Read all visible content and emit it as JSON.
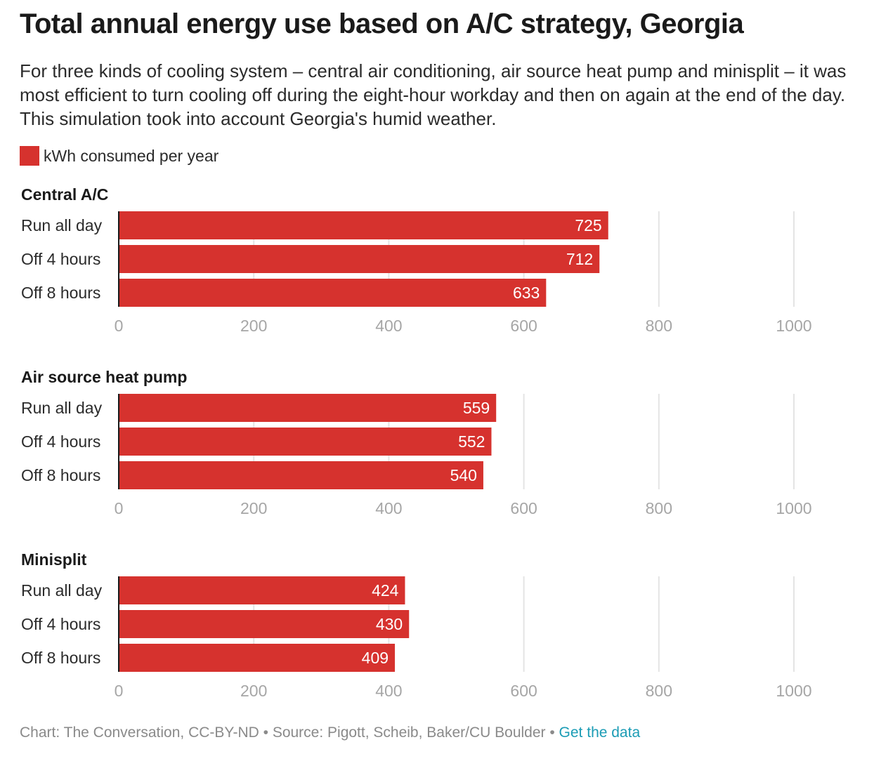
{
  "title": "Total annual energy use based on A/C strategy, Georgia",
  "subtitle": "For three kinds of cooling system – central air conditioning, air source heat pump and minisplit – it was most efficient to turn cooling off during the eight-hour workday and then on again at the end of the day. This simulation took into account Georgia's humid weather.",
  "legend": {
    "label": "kWh consumed per year",
    "color": "#d6322e"
  },
  "footer": {
    "credit": "Chart: The Conversation, CC-BY-ND • Source: Pigott, Scheib, Baker/CU Boulder • ",
    "link": "Get the data"
  },
  "colors": {
    "bar": "#d6322e",
    "grid": "#e4e4e4",
    "tick": "#a6a6a6"
  },
  "chart_data": [
    {
      "type": "bar",
      "orientation": "horizontal",
      "title": "Central A/C",
      "categories": [
        "Run all day",
        "Off 4 hours",
        "Off 8 hours"
      ],
      "values": [
        725,
        712,
        633
      ],
      "xlim": [
        0,
        1000
      ],
      "ticks": [
        0,
        200,
        400,
        600,
        800,
        1000
      ],
      "grid": true
    },
    {
      "type": "bar",
      "orientation": "horizontal",
      "title": "Air source heat pump",
      "categories": [
        "Run all day",
        "Off 4 hours",
        "Off 8 hours"
      ],
      "values": [
        559,
        552,
        540
      ],
      "xlim": [
        0,
        1000
      ],
      "ticks": [
        0,
        200,
        400,
        600,
        800,
        1000
      ],
      "grid": true
    },
    {
      "type": "bar",
      "orientation": "horizontal",
      "title": "Minisplit",
      "categories": [
        "Run all day",
        "Off 4 hours",
        "Off 8 hours"
      ],
      "values": [
        424,
        430,
        409
      ],
      "xlim": [
        0,
        1000
      ],
      "ticks": [
        0,
        200,
        400,
        600,
        800,
        1000
      ],
      "grid": true
    }
  ]
}
